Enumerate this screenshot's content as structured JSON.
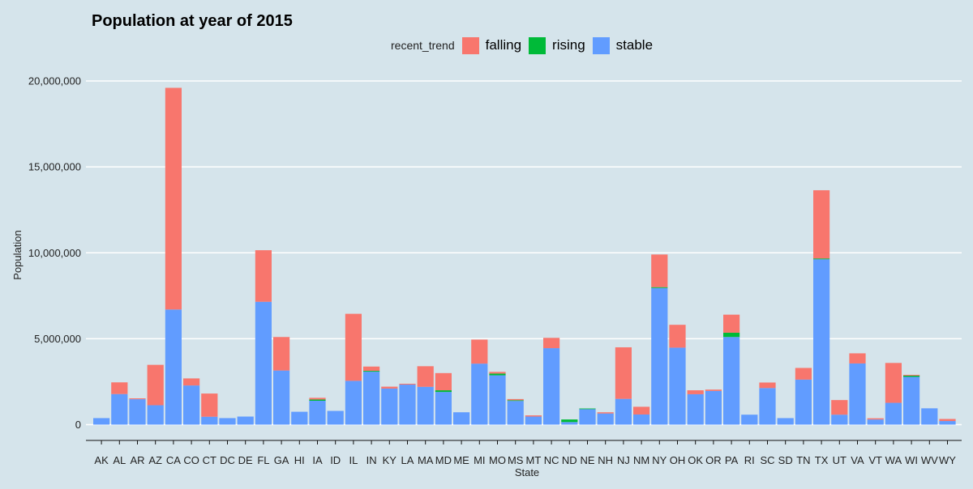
{
  "chart_data": {
    "type": "bar",
    "stacked": true,
    "title": "Population at year of 2015",
    "xlabel": "State",
    "ylabel": "Population",
    "ylim": [
      0,
      20500000
    ],
    "y_ticks": [
      0,
      5000000,
      10000000,
      15000000,
      20000000
    ],
    "y_tick_labels": [
      "0",
      "5,000,000",
      "10,000,000",
      "15,000,000",
      "20,000,000"
    ],
    "legend": {
      "title": "recent_trend",
      "position": "top"
    },
    "categories": [
      "AK",
      "AL",
      "AR",
      "AZ",
      "CA",
      "CO",
      "CT",
      "DC",
      "DE",
      "FL",
      "GA",
      "HI",
      "IA",
      "ID",
      "IL",
      "IN",
      "KY",
      "LA",
      "MA",
      "MD",
      "ME",
      "MI",
      "MO",
      "MS",
      "MT",
      "NC",
      "ND",
      "NE",
      "NH",
      "NJ",
      "NM",
      "NY",
      "OH",
      "OK",
      "OR",
      "PA",
      "RI",
      "SC",
      "SD",
      "TN",
      "TX",
      "UT",
      "VA",
      "VT",
      "WA",
      "WI",
      "WV",
      "WY"
    ],
    "series": [
      {
        "name": "stable",
        "color": "#619cff",
        "values": [
          380000,
          1780000,
          1480000,
          1130000,
          6700000,
          2280000,
          460000,
          380000,
          470000,
          7150000,
          3150000,
          750000,
          1390000,
          800000,
          2550000,
          3080000,
          2100000,
          2330000,
          2200000,
          1900000,
          720000,
          3550000,
          2870000,
          1380000,
          470000,
          4450000,
          150000,
          900000,
          650000,
          1500000,
          590000,
          7950000,
          4480000,
          1770000,
          1960000,
          5100000,
          580000,
          2130000,
          380000,
          2620000,
          9620000,
          580000,
          3560000,
          300000,
          1270000,
          2780000,
          950000,
          210000
        ]
      },
      {
        "name": "rising",
        "color": "#00ba38",
        "values": [
          0,
          0,
          0,
          0,
          0,
          0,
          0,
          0,
          0,
          0,
          0,
          0,
          70000,
          0,
          0,
          50000,
          0,
          0,
          0,
          100000,
          0,
          0,
          100000,
          40000,
          0,
          0,
          150000,
          40000,
          0,
          0,
          0,
          50000,
          0,
          0,
          0,
          250000,
          0,
          0,
          0,
          0,
          50000,
          0,
          0,
          0,
          0,
          70000,
          0,
          0
        ]
      },
      {
        "name": "falling",
        "color": "#f8766d",
        "values": [
          0,
          680000,
          50000,
          2350000,
          12900000,
          410000,
          1350000,
          0,
          0,
          3000000,
          1950000,
          0,
          100000,
          0,
          3900000,
          250000,
          110000,
          50000,
          1200000,
          1000000,
          0,
          1400000,
          100000,
          70000,
          70000,
          600000,
          0,
          0,
          70000,
          3000000,
          450000,
          1900000,
          1330000,
          230000,
          80000,
          1050000,
          0,
          320000,
          0,
          680000,
          3970000,
          850000,
          590000,
          70000,
          2320000,
          50000,
          0,
          120000
        ]
      }
    ]
  }
}
